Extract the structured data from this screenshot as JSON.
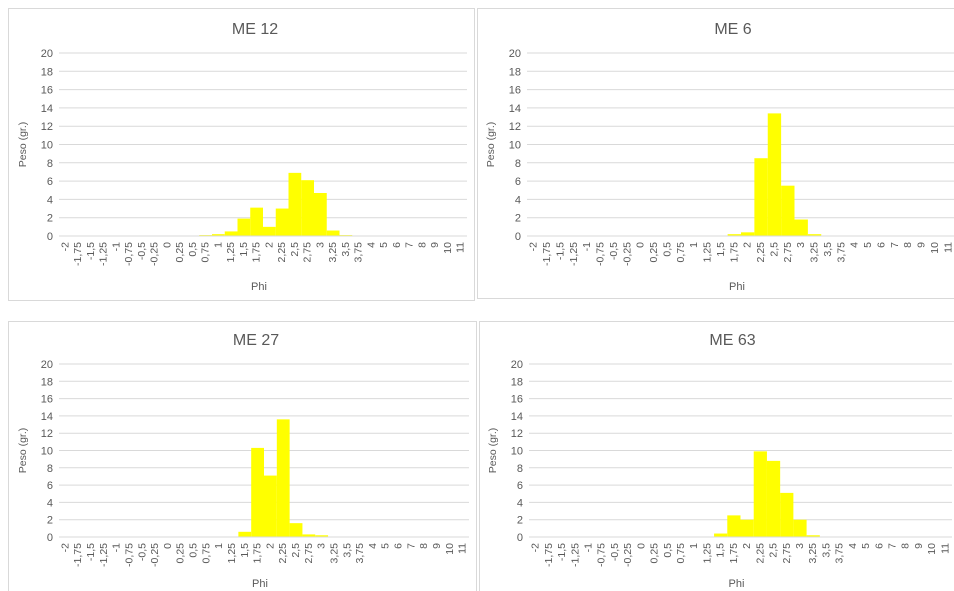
{
  "colors": {
    "bar": "#ffff00",
    "grid": "#d9d9d9",
    "text": "#595959"
  },
  "chart_data": [
    {
      "type": "bar",
      "title": "ME 12",
      "xlabel": "Phi",
      "ylabel": "Peso (gr.)",
      "ylim": [
        0,
        20
      ],
      "yticks": [
        "0",
        "2",
        "4",
        "6",
        "8",
        "10",
        "12",
        "14",
        "16",
        "18",
        "20"
      ],
      "grid": true,
      "legend": "none",
      "categories": [
        "-2",
        "-1,75",
        "-1,5",
        "-1,25",
        "-1",
        "-0,75",
        "-0,5",
        "-0,25",
        "0",
        "0,25",
        "0,5",
        "0,75",
        "1",
        "1,25",
        "1,5",
        "1,75",
        "2",
        "2,25",
        "2,5",
        "2,75",
        "3",
        "3,25",
        "3,5",
        "3,75",
        "4",
        "5",
        "6",
        "7",
        "8",
        "9",
        "10",
        "11"
      ],
      "values": [
        0,
        0,
        0,
        0,
        0,
        0,
        0,
        0,
        0,
        0,
        0,
        0.1,
        0.2,
        0.5,
        1.9,
        3.1,
        1.0,
        3.0,
        6.9,
        6.1,
        4.7,
        0.6,
        0.1,
        0,
        0,
        0,
        0,
        0,
        0,
        0,
        0,
        0
      ]
    },
    {
      "type": "bar",
      "title": "ME 6",
      "xlabel": "Phi",
      "ylabel": "Peso (gr.)",
      "ylim": [
        0,
        20
      ],
      "yticks": [
        "0",
        "2",
        "4",
        "6",
        "8",
        "10",
        "12",
        "14",
        "16",
        "18",
        "20"
      ],
      "grid": true,
      "legend": "none",
      "categories": [
        "-2",
        "-1,75",
        "-1,5",
        "-1,25",
        "-1",
        "-0,75",
        "-0,5",
        "-0,25",
        "0",
        "0,25",
        "0,5",
        "0,75",
        "1",
        "1,25",
        "1,5",
        "1,75",
        "2",
        "2,25",
        "2,5",
        "2,75",
        "3",
        "3,25",
        "3,5",
        "3,75",
        "4",
        "5",
        "6",
        "7",
        "8",
        "9",
        "10",
        "11"
      ],
      "values": [
        0,
        0,
        0,
        0,
        0,
        0,
        0,
        0,
        0,
        0,
        0,
        0,
        0,
        0,
        0.05,
        0.2,
        0.4,
        8.5,
        13.4,
        5.5,
        1.8,
        0.2,
        0,
        0,
        0,
        0,
        0,
        0,
        0,
        0,
        0,
        0
      ]
    },
    {
      "type": "bar",
      "title": "ME 27",
      "xlabel": "Phi",
      "ylabel": "Peso (gr.)",
      "ylim": [
        0,
        20
      ],
      "yticks": [
        "0",
        "2",
        "4",
        "6",
        "8",
        "10",
        "12",
        "14",
        "16",
        "18",
        "20"
      ],
      "grid": true,
      "legend": "none",
      "categories": [
        "-2",
        "-1,75",
        "-1,5",
        "-1,25",
        "-1",
        "-0,75",
        "-0,5",
        "-0,25",
        "0",
        "0,25",
        "0,5",
        "0,75",
        "1",
        "1,25",
        "1,5",
        "1,75",
        "2",
        "2,25",
        "2,5",
        "2,75",
        "3",
        "3,25",
        "3,5",
        "3,75",
        "4",
        "5",
        "6",
        "7",
        "8",
        "9",
        "10",
        "11"
      ],
      "values": [
        0,
        0,
        0,
        0,
        0,
        0,
        0,
        0,
        0,
        0,
        0,
        0,
        0,
        0.05,
        0.6,
        10.3,
        7.1,
        13.6,
        1.6,
        0.3,
        0.2,
        0,
        0,
        0,
        0,
        0,
        0,
        0,
        0,
        0,
        0,
        0
      ]
    },
    {
      "type": "bar",
      "title": "ME 63",
      "xlabel": "Phi",
      "ylabel": "Peso (gr.)",
      "ylim": [
        0,
        20
      ],
      "yticks": [
        "0",
        "2",
        "4",
        "6",
        "8",
        "10",
        "12",
        "14",
        "16",
        "18",
        "20"
      ],
      "grid": true,
      "legend": "none",
      "categories": [
        "-2",
        "-1,75",
        "-1,5",
        "-1,25",
        "-1",
        "-0,75",
        "-0,5",
        "-0,25",
        "0",
        "0,25",
        "0,5",
        "0,75",
        "1",
        "1,25",
        "1,5",
        "1,75",
        "2",
        "2,25",
        "2,5",
        "2,75",
        "3",
        "3,25",
        "3,5",
        "3,75",
        "4",
        "5",
        "6",
        "7",
        "8",
        "9",
        "10",
        "11"
      ],
      "values": [
        0,
        0,
        0,
        0,
        0,
        0,
        0,
        0,
        0,
        0,
        0,
        0,
        0,
        0,
        0.4,
        2.5,
        2.0,
        9.9,
        8.8,
        5.1,
        2.0,
        0.2,
        0,
        0,
        0,
        0,
        0,
        0,
        0,
        0,
        0,
        0
      ]
    }
  ]
}
